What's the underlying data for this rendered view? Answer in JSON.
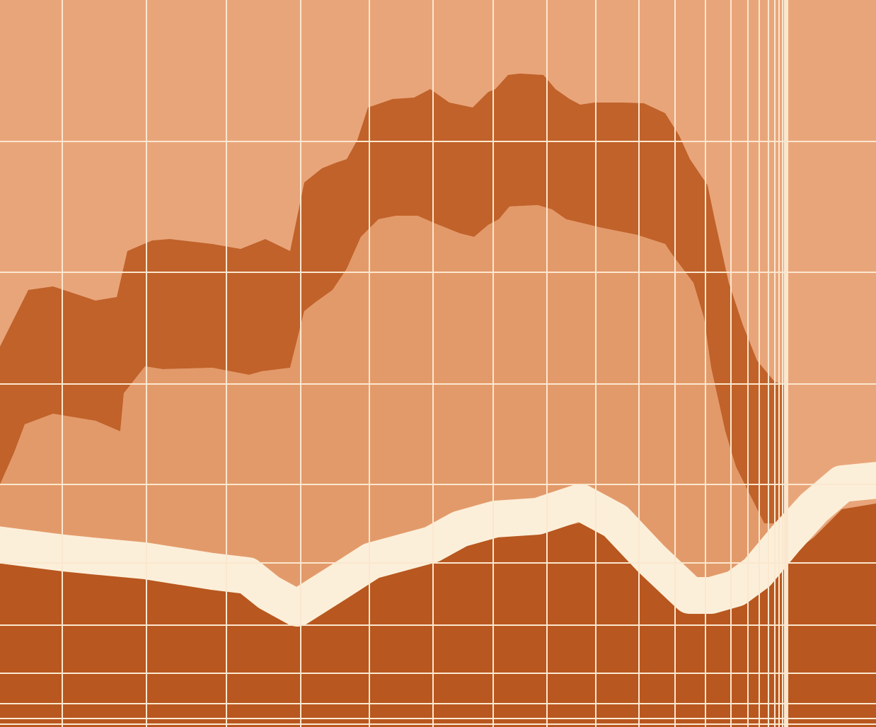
{
  "artwork": {
    "colors": {
      "background": "#e9a57a",
      "upper_band": "#c0622a",
      "middle_fill": "#e39a6a",
      "lower_fill": "#b8571f",
      "wave_line": "#fcefd9",
      "grid_lines": "#fbe7cf"
    },
    "grid": {
      "vertical_line_count": 24,
      "horizontal_line_count": 10
    }
  }
}
